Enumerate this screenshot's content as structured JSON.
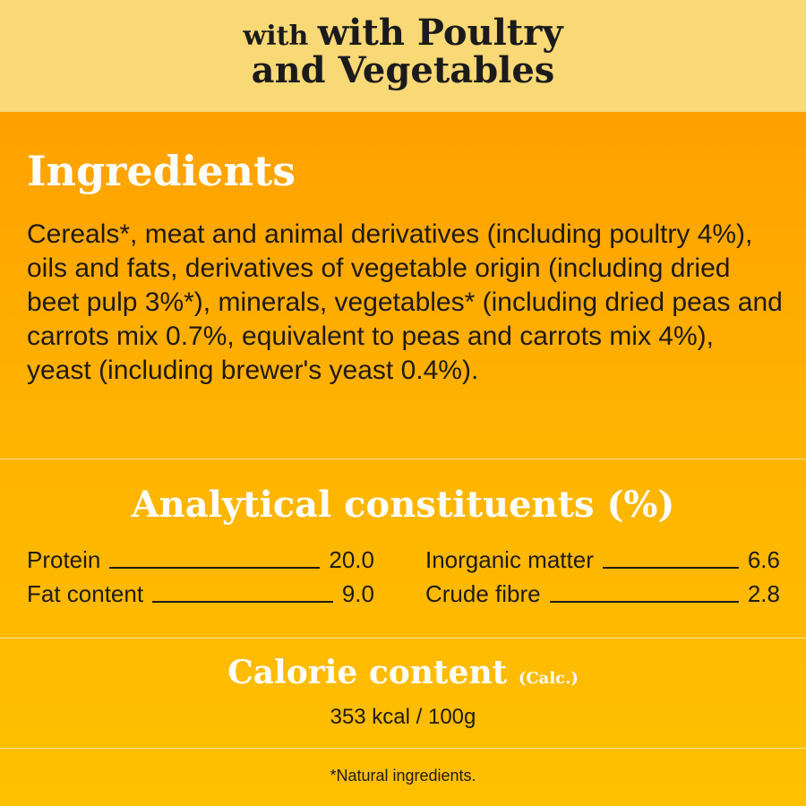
{
  "header": {
    "line1": "with Poultry",
    "line2": "and Vegetables"
  },
  "ingredients": {
    "title": "Ingredients",
    "text": "Cereals*, meat and animal derivatives (including poultry 4%), oils and fats, derivatives of vegetable origin (including dried beet pulp 3%*), minerals, vegetables* (including dried peas and carrots mix 0.7%, equivalent to peas and carrots mix 4%), yeast (including brewer's yeast 0.4%)."
  },
  "analytical": {
    "title": "Analytical constituents (%)",
    "items": [
      {
        "label": "Protein",
        "value": "20.0"
      },
      {
        "label": "Fat content",
        "value": "9.0"
      },
      {
        "label": "Inorganic matter",
        "value": "6.6"
      },
      {
        "label": "Crude fibre",
        "value": "2.8"
      }
    ]
  },
  "calorie": {
    "title": "Calorie content",
    "calc": "(Calc.)",
    "value": "353 kcal / 100g"
  },
  "footnote": "*Natural ingredients.",
  "colors": {
    "header_band": "#F9D876",
    "orange_top": "#FF9A00",
    "orange_bottom": "#FFC000",
    "text_dark": "#1f1a13",
    "heading_white": "#FFFFFF"
  }
}
